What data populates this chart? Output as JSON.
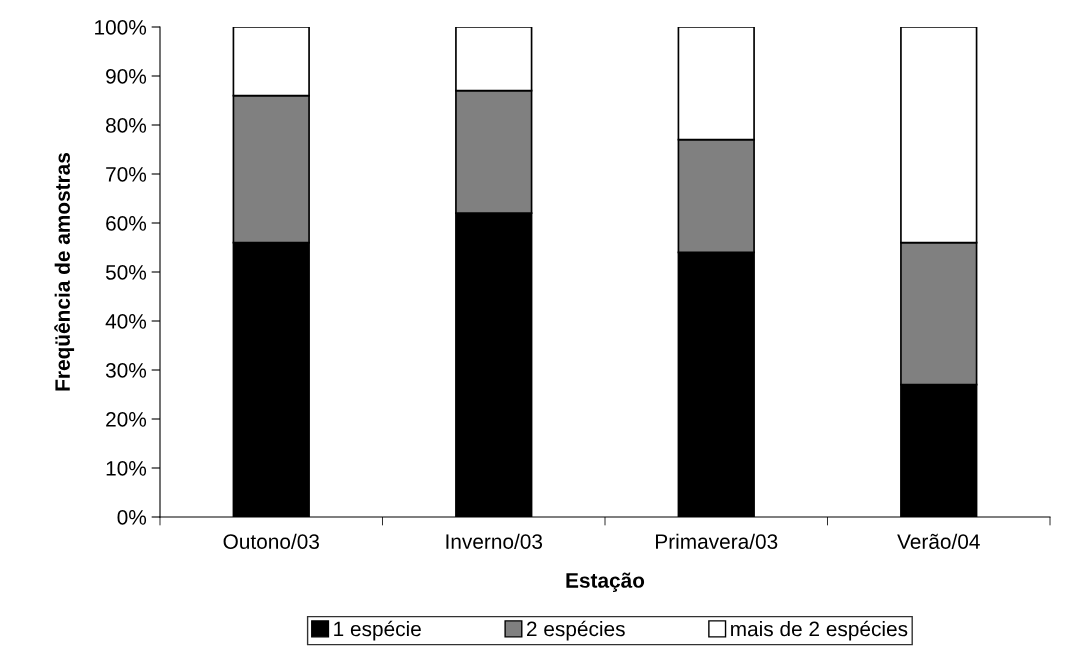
{
  "chart_data": {
    "type": "bar",
    "stacked": true,
    "xlabel": "Estação",
    "ylabel": "Freqüência de amostras",
    "categories": [
      "Outono/03",
      "Inverno/03",
      "Primavera/03",
      "Verão/04"
    ],
    "series": [
      {
        "name": "1 espécie",
        "color": "#000000",
        "values": [
          56,
          62,
          54,
          27
        ]
      },
      {
        "name": "2 espécies",
        "color": "#808080",
        "values": [
          30,
          25,
          23,
          29
        ]
      },
      {
        "name": "mais de 2 espécies",
        "color": "#ffffff",
        "values": [
          14,
          13,
          23,
          44
        ]
      }
    ],
    "ylim": [
      0,
      100
    ],
    "yticks": [
      {
        "value": 0,
        "label": "0%"
      },
      {
        "value": 10,
        "label": "10%"
      },
      {
        "value": 20,
        "label": "20%"
      },
      {
        "value": 30,
        "label": "30%"
      },
      {
        "value": 40,
        "label": "40%"
      },
      {
        "value": 50,
        "label": "50%"
      },
      {
        "value": 60,
        "label": "60%"
      },
      {
        "value": 70,
        "label": "70%"
      },
      {
        "value": 80,
        "label": "80%"
      },
      {
        "value": 90,
        "label": "90%"
      },
      {
        "value": 100,
        "label": "100%"
      }
    ],
    "grid": false,
    "legend": "bottom"
  }
}
